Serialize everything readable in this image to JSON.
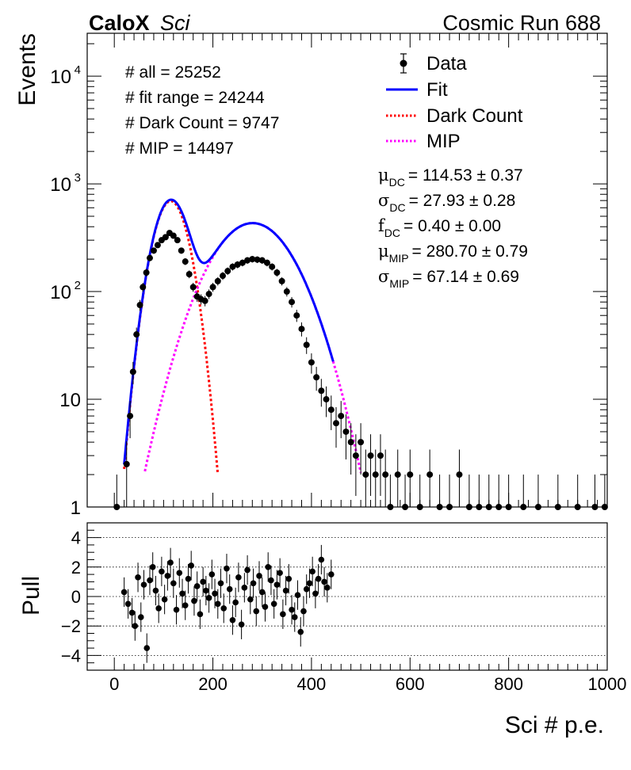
{
  "header": {
    "experiment_bold": "CaloX",
    "experiment_italic": "Sci",
    "run_label": "Cosmic Run 688"
  },
  "counts": [
    "# all = 25252",
    "# fit range = 24244",
    "# Dark Count = 9747",
    "# MIP = 14497"
  ],
  "legend": [
    {
      "label": "Data",
      "style": "marker",
      "color": "#000000"
    },
    {
      "label": "Fit",
      "style": "solid",
      "color": "#0000ff"
    },
    {
      "label": "Dark Count",
      "style": "dotted",
      "color": "#ff0000"
    },
    {
      "label": "MIP",
      "style": "dotted",
      "color": "#ff00ff"
    }
  ],
  "fit_params": [
    {
      "sym": "μ",
      "sub": "DC",
      "value": "= 114.53 ± 0.37"
    },
    {
      "sym": "σ",
      "sub": "DC",
      "value": "= 27.93 ± 0.28"
    },
    {
      "sym": "f",
      "sub": "DC",
      "value": "= 0.40 ± 0.00"
    },
    {
      "sym": "μ",
      "sub": "MIP",
      "value": "= 280.70 ± 0.79"
    },
    {
      "sym": "σ",
      "sub": "MIP",
      "value": "= 67.14 ± 0.69"
    }
  ],
  "chart_data": [
    {
      "type": "scatter",
      "ylabel": "Events",
      "yscale": "log",
      "xlim": [
        -55,
        1000
      ],
      "ylim": [
        1,
        25000
      ],
      "yticks": [
        {
          "value": 1,
          "label": "1"
        },
        {
          "value": 10,
          "label": "10"
        },
        {
          "value": 100,
          "label": "10",
          "exp": "2"
        },
        {
          "value": 1000,
          "label": "10",
          "exp": "3"
        },
        {
          "value": 10000,
          "label": "10",
          "exp": "4"
        }
      ],
      "legend_position": "top-right",
      "series": [
        {
          "name": "Data",
          "kind": "points",
          "color": "#000000"
        },
        {
          "name": "Fit",
          "kind": "line",
          "color": "#0000ff",
          "x_range": [
            20,
            445
          ]
        },
        {
          "name": "Dark Count",
          "kind": "line",
          "color": "#ff0000",
          "x_range": [
            20,
            210
          ]
        },
        {
          "name": "MIP",
          "kind": "line",
          "color": "#ff00ff",
          "x_range": [
            62,
            500
          ]
        }
      ],
      "data_points": [
        {
          "x": 5,
          "y": 1
        },
        {
          "x": 25,
          "y": 2.5
        },
        {
          "x": 32,
          "y": 7
        },
        {
          "x": 38,
          "y": 18
        },
        {
          "x": 45,
          "y": 40
        },
        {
          "x": 52,
          "y": 75
        },
        {
          "x": 58,
          "y": 110
        },
        {
          "x": 65,
          "y": 150
        },
        {
          "x": 72,
          "y": 205
        },
        {
          "x": 80,
          "y": 240
        },
        {
          "x": 88,
          "y": 270
        },
        {
          "x": 96,
          "y": 300
        },
        {
          "x": 104,
          "y": 320
        },
        {
          "x": 112,
          "y": 350
        },
        {
          "x": 120,
          "y": 330
        },
        {
          "x": 128,
          "y": 300
        },
        {
          "x": 136,
          "y": 240
        },
        {
          "x": 144,
          "y": 190
        },
        {
          "x": 152,
          "y": 145
        },
        {
          "x": 160,
          "y": 110
        },
        {
          "x": 168,
          "y": 90
        },
        {
          "x": 176,
          "y": 85
        },
        {
          "x": 184,
          "y": 82
        },
        {
          "x": 192,
          "y": 95
        },
        {
          "x": 200,
          "y": 110
        },
        {
          "x": 210,
          "y": 125
        },
        {
          "x": 220,
          "y": 140
        },
        {
          "x": 230,
          "y": 155
        },
        {
          "x": 240,
          "y": 170
        },
        {
          "x": 250,
          "y": 178
        },
        {
          "x": 260,
          "y": 185
        },
        {
          "x": 270,
          "y": 195
        },
        {
          "x": 280,
          "y": 200
        },
        {
          "x": 290,
          "y": 198
        },
        {
          "x": 300,
          "y": 195
        },
        {
          "x": 310,
          "y": 185
        },
        {
          "x": 320,
          "y": 170
        },
        {
          "x": 330,
          "y": 150
        },
        {
          "x": 340,
          "y": 125
        },
        {
          "x": 350,
          "y": 100
        },
        {
          "x": 360,
          "y": 80
        },
        {
          "x": 370,
          "y": 60
        },
        {
          "x": 380,
          "y": 45
        },
        {
          "x": 390,
          "y": 32
        },
        {
          "x": 400,
          "y": 22
        },
        {
          "x": 410,
          "y": 16
        },
        {
          "x": 420,
          "y": 12
        },
        {
          "x": 430,
          "y": 10
        },
        {
          "x": 440,
          "y": 8
        },
        {
          "x": 450,
          "y": 6
        },
        {
          "x": 460,
          "y": 7
        },
        {
          "x": 470,
          "y": 5
        },
        {
          "x": 480,
          "y": 4
        },
        {
          "x": 490,
          "y": 3
        },
        {
          "x": 500,
          "y": 4
        },
        {
          "x": 510,
          "y": 2
        },
        {
          "x": 520,
          "y": 3
        },
        {
          "x": 530,
          "y": 2
        },
        {
          "x": 540,
          "y": 3
        },
        {
          "x": 550,
          "y": 2
        },
        {
          "x": 560,
          "y": 1
        },
        {
          "x": 575,
          "y": 2
        },
        {
          "x": 590,
          "y": 1
        },
        {
          "x": 600,
          "y": 2
        },
        {
          "x": 620,
          "y": 1
        },
        {
          "x": 640,
          "y": 2
        },
        {
          "x": 660,
          "y": 1
        },
        {
          "x": 680,
          "y": 1
        },
        {
          "x": 700,
          "y": 2
        },
        {
          "x": 720,
          "y": 1
        },
        {
          "x": 740,
          "y": 1
        },
        {
          "x": 760,
          "y": 1
        },
        {
          "x": 780,
          "y": 1
        },
        {
          "x": 800,
          "y": 1
        },
        {
          "x": 830,
          "y": 1
        },
        {
          "x": 860,
          "y": 1
        },
        {
          "x": 900,
          "y": 1
        },
        {
          "x": 940,
          "y": 1
        },
        {
          "x": 975,
          "y": 1
        },
        {
          "x": 995,
          "y": 1
        }
      ]
    },
    {
      "type": "scatter",
      "ylabel": "Pull",
      "xlabel": "Sci # p.e.",
      "xlim": [
        -55,
        1000
      ],
      "ylim": [
        -5,
        5
      ],
      "yticks": [
        -4,
        -2,
        0,
        2,
        4
      ],
      "xticks": [
        0,
        200,
        400,
        600,
        800,
        1000
      ],
      "reference_lines": [
        -4,
        -2,
        0,
        2,
        4
      ],
      "pull_points": [
        {
          "x": 20,
          "y": 0.3
        },
        {
          "x": 28,
          "y": -0.5
        },
        {
          "x": 36,
          "y": -1.1
        },
        {
          "x": 42,
          "y": -2.0
        },
        {
          "x": 48,
          "y": 1.3
        },
        {
          "x": 54,
          "y": -1.4
        },
        {
          "x": 60,
          "y": 0.8
        },
        {
          "x": 66,
          "y": -3.5
        },
        {
          "x": 72,
          "y": 1.1
        },
        {
          "x": 78,
          "y": 2.0
        },
        {
          "x": 84,
          "y": 0.4
        },
        {
          "x": 90,
          "y": -0.8
        },
        {
          "x": 96,
          "y": 1.7
        },
        {
          "x": 102,
          "y": -0.2
        },
        {
          "x": 108,
          "y": 1.4
        },
        {
          "x": 114,
          "y": 2.3
        },
        {
          "x": 120,
          "y": 0.9
        },
        {
          "x": 126,
          "y": -0.9
        },
        {
          "x": 132,
          "y": 1.6
        },
        {
          "x": 138,
          "y": 0.2
        },
        {
          "x": 144,
          "y": -0.6
        },
        {
          "x": 150,
          "y": 1.2
        },
        {
          "x": 156,
          "y": 2.1
        },
        {
          "x": 162,
          "y": -0.3
        },
        {
          "x": 168,
          "y": 0.7
        },
        {
          "x": 174,
          "y": -1.2
        },
        {
          "x": 180,
          "y": 1.0
        },
        {
          "x": 186,
          "y": 0.4
        },
        {
          "x": 192,
          "y": -0.1
        },
        {
          "x": 198,
          "y": 1.5
        },
        {
          "x": 204,
          "y": 0.2
        },
        {
          "x": 210,
          "y": -0.5
        },
        {
          "x": 216,
          "y": 0.9
        },
        {
          "x": 222,
          "y": -0.8
        },
        {
          "x": 228,
          "y": 1.9
        },
        {
          "x": 234,
          "y": 0.5
        },
        {
          "x": 240,
          "y": -1.6
        },
        {
          "x": 246,
          "y": -0.4
        },
        {
          "x": 252,
          "y": 1.3
        },
        {
          "x": 258,
          "y": -1.9
        },
        {
          "x": 264,
          "y": 0.6
        },
        {
          "x": 270,
          "y": 1.8
        },
        {
          "x": 276,
          "y": -0.2
        },
        {
          "x": 282,
          "y": 0.9
        },
        {
          "x": 288,
          "y": -1.0
        },
        {
          "x": 294,
          "y": 1.4
        },
        {
          "x": 300,
          "y": 0.3
        },
        {
          "x": 306,
          "y": -0.7
        },
        {
          "x": 312,
          "y": 2.0
        },
        {
          "x": 318,
          "y": 1.1
        },
        {
          "x": 324,
          "y": -0.5
        },
        {
          "x": 330,
          "y": 0.8
        },
        {
          "x": 336,
          "y": 1.6
        },
        {
          "x": 342,
          "y": -1.2
        },
        {
          "x": 348,
          "y": 0.4
        },
        {
          "x": 354,
          "y": 1.2
        },
        {
          "x": 360,
          "y": -0.9
        },
        {
          "x": 366,
          "y": -1.4
        },
        {
          "x": 372,
          "y": 0.1
        },
        {
          "x": 378,
          "y": -2.4
        },
        {
          "x": 384,
          "y": -1.0
        },
        {
          "x": 390,
          "y": 0.5
        },
        {
          "x": 396,
          "y": 0.9
        },
        {
          "x": 402,
          "y": 1.7
        },
        {
          "x": 408,
          "y": 0.2
        },
        {
          "x": 414,
          "y": 1.2
        },
        {
          "x": 420,
          "y": 2.5
        },
        {
          "x": 426,
          "y": 1.0
        },
        {
          "x": 432,
          "y": 0.6
        },
        {
          "x": 440,
          "y": 1.5
        }
      ]
    }
  ]
}
